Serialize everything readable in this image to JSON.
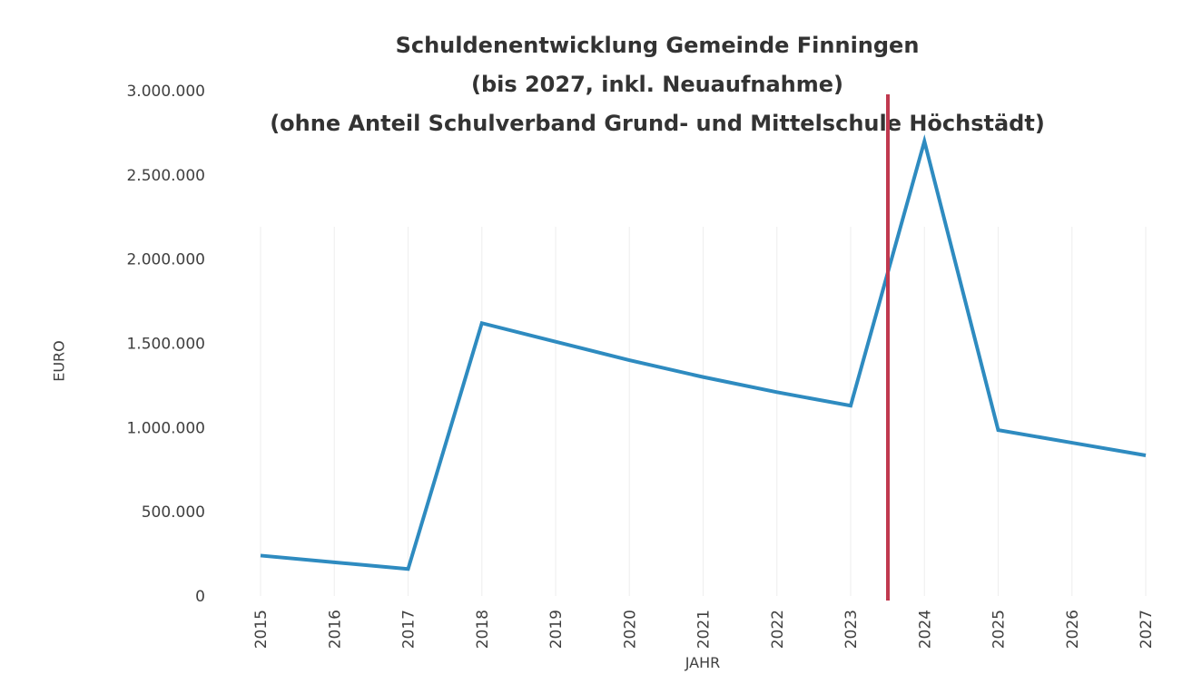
{
  "chart_data": {
    "type": "line",
    "title": [
      "Schuldenentwicklung Gemeinde Finningen",
      "(bis 2027, inkl. Neuaufnahme)",
      "(ohne Anteil Schulverband Grund- und Mittelschule Höchstädt)"
    ],
    "x_label": "JAHR",
    "y_label": "EURO",
    "categories": [
      "2015",
      "2016",
      "2017",
      "2018",
      "2019",
      "2020",
      "2021",
      "2022",
      "2023",
      "2024",
      "2025",
      "2026",
      "2027"
    ],
    "values": [
      240000,
      200000,
      160000,
      1620000,
      1510000,
      1400000,
      1300000,
      1210000,
      1130000,
      2700000,
      985000,
      910000,
      835000
    ],
    "color": "#2e8bc0",
    "ylim": [
      0,
      3000000
    ],
    "yticks": [
      0,
      {
        "value": 500000,
        "label": "500.000"
      },
      {
        "value": 1000000,
        "label": "1.000.000"
      },
      {
        "value": 1500000,
        "label": "1.500.000"
      },
      {
        "value": 2000000,
        "label": "2.000.000"
      },
      {
        "value": 2500000,
        "label": "2.500.000"
      },
      {
        "value": 3000000,
        "label": "3.000.000"
      }
    ],
    "grid": true
  }
}
